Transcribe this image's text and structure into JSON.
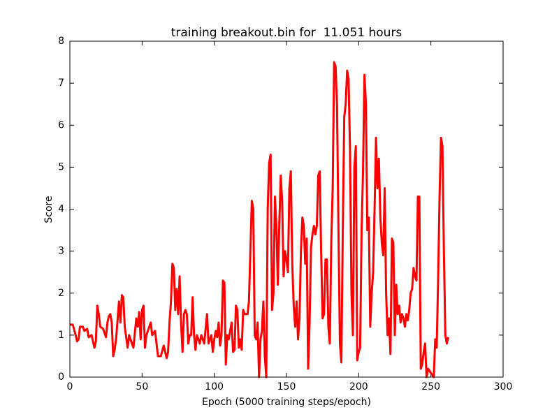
{
  "chart_data": {
    "type": "line",
    "title": "training breakout.bin for  11.051 hours",
    "xlabel": "Epoch (5000 training steps/epoch)",
    "ylabel": "Score",
    "xlim": [
      0,
      300
    ],
    "xticks": [
      0,
      50,
      100,
      150,
      200,
      250,
      300
    ],
    "ylim": [
      0,
      8
    ],
    "yticks": [
      0,
      1,
      2,
      3,
      4,
      5,
      6,
      7,
      8
    ],
    "grid": false,
    "series": [
      {
        "color": "#ff0000",
        "x": [
          0,
          2,
          4,
          5,
          6,
          7,
          9,
          10,
          12,
          13,
          15,
          16,
          17,
          18,
          19,
          20,
          21,
          23,
          25,
          26,
          27,
          28,
          29,
          30,
          31,
          32,
          34,
          35,
          36,
          37,
          38,
          40,
          41,
          42,
          44,
          46,
          47,
          48,
          49,
          50,
          51,
          52,
          53,
          55,
          56,
          57,
          59,
          60,
          61,
          63,
          65,
          66,
          67,
          68,
          69,
          70,
          71,
          72,
          73,
          74,
          75,
          76,
          77,
          78,
          79,
          80,
          81,
          82,
          83,
          84,
          85,
          86,
          87,
          88,
          90,
          91,
          92,
          93,
          95,
          96,
          98,
          99,
          100,
          101,
          102,
          103,
          104,
          105,
          106,
          107,
          108,
          109,
          110,
          112,
          113,
          114,
          115,
          116,
          117,
          118,
          119,
          120,
          121,
          123,
          124,
          126,
          127,
          128,
          129,
          130,
          131,
          132,
          133,
          134,
          135,
          136,
          137,
          138,
          139,
          140,
          141,
          142,
          143,
          144,
          145,
          146,
          147,
          148,
          149,
          150,
          151,
          152,
          153,
          154,
          155,
          156,
          157,
          158,
          159,
          160,
          161,
          162,
          163,
          164,
          165,
          166,
          167,
          168,
          169,
          170,
          171,
          172,
          173,
          174,
          175,
          176,
          177,
          178,
          179,
          180,
          181,
          182,
          183,
          184,
          185,
          186,
          187,
          188,
          189,
          190,
          191,
          192,
          193,
          194,
          195,
          196,
          197,
          198,
          199,
          200,
          201,
          202,
          203,
          204,
          205,
          206,
          207,
          208,
          209,
          210,
          211,
          212,
          213,
          214,
          215,
          216,
          217,
          218,
          219,
          220,
          221,
          222,
          223,
          224,
          225,
          226,
          227,
          228,
          229,
          230,
          231,
          232,
          233,
          234,
          235,
          236,
          237,
          238,
          239,
          240,
          241,
          242,
          243,
          244,
          245,
          246,
          247,
          248,
          249,
          250,
          251,
          252,
          253,
          254,
          255,
          256,
          257,
          258,
          259,
          260,
          261,
          262
        ],
        "values": [
          1.25,
          1.25,
          1.0,
          0.85,
          0.9,
          1.2,
          1.2,
          1.1,
          1.15,
          0.95,
          1.0,
          0.85,
          0.7,
          0.85,
          1.7,
          1.5,
          1.2,
          1.15,
          0.95,
          1.3,
          1.45,
          1.5,
          1.3,
          0.5,
          0.65,
          0.9,
          1.8,
          1.3,
          1.95,
          1.9,
          1.2,
          0.7,
          1.0,
          0.9,
          0.7,
          1.4,
          1.2,
          1.55,
          0.9,
          1.6,
          1.7,
          0.7,
          1.0,
          1.2,
          1.3,
          1.0,
          1.1,
          0.8,
          0.5,
          0.5,
          0.75,
          0.6,
          0.45,
          0.6,
          1.3,
          1.8,
          2.7,
          2.6,
          1.6,
          2.1,
          1.5,
          2.4,
          1.3,
          0.6,
          1.5,
          1.6,
          1.5,
          0.8,
          1.0,
          1.0,
          1.9,
          1.0,
          0.65,
          1.0,
          0.8,
          1.0,
          0.9,
          0.8,
          1.5,
          0.8,
          1.0,
          0.6,
          0.9,
          1.1,
          0.95,
          1.3,
          0.75,
          1.0,
          2.3,
          2.25,
          0.3,
          1.0,
          0.9,
          1.3,
          0.6,
          0.65,
          1.7,
          1.6,
          0.7,
          0.9,
          0.65,
          1.6,
          1.5,
          1.5,
          1.8,
          4.2,
          4.0,
          1.0,
          0.9,
          1.3,
          0.0,
          0.9,
          1.1,
          1.8,
          0.5,
          0.0,
          4.0,
          5.1,
          5.3,
          1.6,
          2.0,
          4.3,
          3.6,
          2.2,
          3.6,
          4.8,
          4.2,
          2.4,
          3.0,
          2.8,
          2.5,
          4.5,
          4.9,
          2.7,
          1.7,
          1.2,
          1.8,
          0.9,
          1.4,
          3.0,
          3.8,
          3.6,
          2.7,
          3.3,
          0.2,
          1.3,
          3.1,
          3.4,
          3.6,
          3.4,
          3.6,
          4.8,
          4.9,
          3.0,
          1.4,
          1.5,
          2.8,
          2.8,
          1.2,
          0.8,
          3.2,
          4.5,
          7.5,
          7.4,
          6.5,
          3.5,
          0.8,
          0.35,
          3.5,
          6.2,
          6.5,
          7.3,
          7.1,
          5.4,
          2.0,
          1.0,
          5.0,
          5.5,
          0.4,
          0.6,
          0.7,
          3.5,
          4.9,
          7.2,
          6.5,
          3.5,
          3.8,
          1.2,
          2.0,
          2.5,
          4.0,
          5.7,
          4.5,
          5.2,
          3.8,
          3.2,
          2.9,
          4.5,
          2.0,
          1.0,
          1.4,
          0.55,
          3.3,
          3.2,
          1.0,
          2.2,
          1.5,
          1.7,
          1.3,
          1.5,
          1.4,
          1.2,
          1.5,
          1.35,
          1.6,
          2.0,
          2.1,
          2.6,
          2.4,
          2.3,
          4.3,
          4.3,
          0.2,
          0.3,
          0.6,
          0.8,
          0.0,
          0.2,
          0.15,
          0.1,
          0.05,
          0.0,
          0.9,
          0.7,
          2.3,
          4.3,
          5.7,
          5.5,
          3.0,
          1.0,
          0.8,
          0.95
        ]
      }
    ]
  }
}
